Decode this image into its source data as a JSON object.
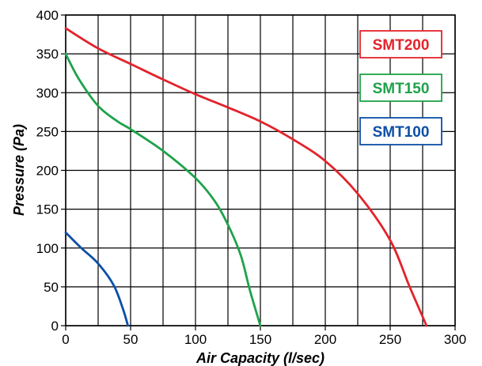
{
  "chart_data": {
    "type": "line",
    "xlabel": "Air Capacity (l/sec)",
    "ylabel": "Pressure (Pa)",
    "xlim": [
      0,
      300
    ],
    "ylim": [
      0,
      400
    ],
    "x_ticks": [
      0,
      50,
      100,
      150,
      200,
      250,
      300
    ],
    "y_ticks": [
      0,
      50,
      100,
      150,
      200,
      250,
      300,
      350,
      400
    ],
    "x_tick_labels": [
      "0",
      "50",
      "100",
      "150",
      "200",
      "250",
      "300"
    ],
    "y_tick_labels": [
      "0",
      "50",
      "100",
      "150",
      "200",
      "250",
      "300",
      "350",
      "400"
    ],
    "grid": true,
    "grid_x_step": 25,
    "grid_y_step": 50,
    "legend_position": "right",
    "series": [
      {
        "name": "SMT200",
        "color": "#e3232b",
        "points": [
          [
            0,
            383
          ],
          [
            25,
            357
          ],
          [
            50,
            337
          ],
          [
            75,
            317
          ],
          [
            100,
            298
          ],
          [
            125,
            281
          ],
          [
            150,
            263
          ],
          [
            175,
            240
          ],
          [
            200,
            212
          ],
          [
            225,
            170
          ],
          [
            250,
            110
          ],
          [
            265,
            50
          ],
          [
            278,
            0
          ]
        ]
      },
      {
        "name": "SMT150",
        "color": "#1ea24a",
        "points": [
          [
            0,
            350
          ],
          [
            10,
            318
          ],
          [
            25,
            283
          ],
          [
            40,
            263
          ],
          [
            50,
            253
          ],
          [
            75,
            225
          ],
          [
            100,
            190
          ],
          [
            115,
            160
          ],
          [
            125,
            130
          ],
          [
            135,
            90
          ],
          [
            142,
            45
          ],
          [
            150,
            0
          ]
        ]
      },
      {
        "name": "SMT100",
        "color": "#0d4fa6",
        "points": [
          [
            0,
            120
          ],
          [
            12,
            100
          ],
          [
            25,
            80
          ],
          [
            37,
            52
          ],
          [
            44,
            22
          ],
          [
            48,
            0
          ]
        ]
      }
    ]
  }
}
